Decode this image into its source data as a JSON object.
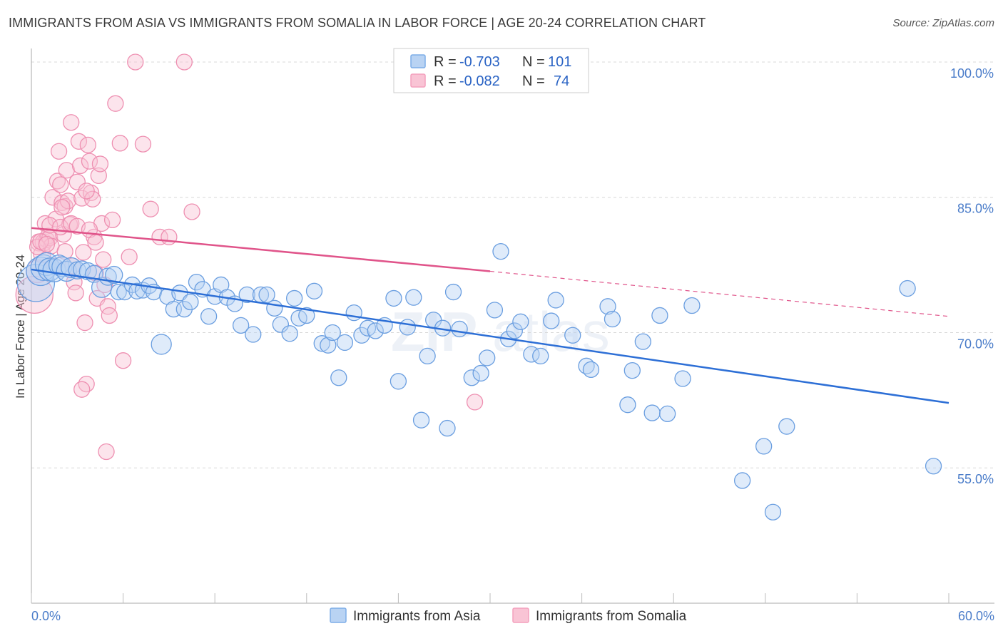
{
  "title": "IMMIGRANTS FROM ASIA VS IMMIGRANTS FROM SOMALIA IN LABOR FORCE | AGE 20-24 CORRELATION CHART",
  "source": "Source: ZipAtlas.com",
  "chart_data": {
    "type": "scatter",
    "title": "IMMIGRANTS FROM ASIA VS IMMIGRANTS FROM SOMALIA IN LABOR FORCE | AGE 20-24 CORRELATION CHART",
    "xlabel": "",
    "ylabel": "In Labor Force | Age 20-24",
    "xlim": [
      0,
      60
    ],
    "ylim": [
      40,
      101.5
    ],
    "x_tick_labels": [
      "0.0%",
      "60.0%"
    ],
    "y_ticks": [
      55,
      70,
      85,
      100
    ],
    "y_tick_labels": [
      "55.0%",
      "70.0%",
      "85.0%",
      "100.0%"
    ],
    "grid": true,
    "legend_position": "top-center",
    "watermark": "ZIPatlas",
    "legend": {
      "rows": [
        {
          "r_label": "R = ",
          "r_value": "-0.703",
          "n_label": "N = ",
          "n_value": "101"
        },
        {
          "r_label": "R = ",
          "r_value": "-0.082",
          "n_label": "N = ",
          "n_value": "74"
        }
      ]
    },
    "series": [
      {
        "name": "Immigrants from Asia",
        "color": "#7eaee8",
        "line_color": "#2d6fd6",
        "trend": {
          "x": [
            0,
            60
          ],
          "y": [
            77.0,
            62.2
          ]
        },
        "points": [
          [
            0.3,
            75.5
          ],
          [
            0.6,
            76.8
          ],
          [
            0.8,
            77.2
          ],
          [
            1.0,
            77.6
          ],
          [
            1.2,
            77.0
          ],
          [
            1.5,
            76.9
          ],
          [
            1.8,
            77.5
          ],
          [
            2.0,
            77.3
          ],
          [
            2.3,
            76.8
          ],
          [
            2.6,
            77.2
          ],
          [
            3.0,
            76.9
          ],
          [
            3.3,
            77.0
          ],
          [
            3.7,
            76.8
          ],
          [
            4.1,
            76.5
          ],
          [
            4.6,
            75.0
          ],
          [
            5.0,
            76.2
          ],
          [
            5.4,
            76.4
          ],
          [
            5.7,
            74.5
          ],
          [
            6.1,
            74.5
          ],
          [
            6.6,
            75.3
          ],
          [
            6.9,
            74.6
          ],
          [
            7.3,
            74.7
          ],
          [
            7.7,
            75.2
          ],
          [
            8.0,
            74.5
          ],
          [
            8.5,
            68.7
          ],
          [
            8.9,
            74.0
          ],
          [
            9.3,
            72.6
          ],
          [
            9.7,
            74.4
          ],
          [
            10.0,
            72.6
          ],
          [
            10.4,
            73.4
          ],
          [
            10.8,
            75.6
          ],
          [
            11.2,
            74.8
          ],
          [
            11.6,
            71.8
          ],
          [
            12.0,
            74.0
          ],
          [
            12.4,
            75.3
          ],
          [
            12.8,
            73.9
          ],
          [
            13.3,
            73.2
          ],
          [
            13.7,
            70.8
          ],
          [
            14.1,
            74.2
          ],
          [
            14.5,
            69.8
          ],
          [
            15.0,
            74.2
          ],
          [
            15.4,
            74.2
          ],
          [
            15.9,
            72.7
          ],
          [
            16.3,
            70.9
          ],
          [
            16.9,
            69.9
          ],
          [
            17.2,
            73.8
          ],
          [
            17.5,
            71.6
          ],
          [
            18.0,
            71.9
          ],
          [
            18.5,
            74.6
          ],
          [
            19.0,
            68.8
          ],
          [
            19.4,
            68.6
          ],
          [
            19.7,
            70.0
          ],
          [
            20.1,
            65.0
          ],
          [
            20.5,
            68.9
          ],
          [
            21.1,
            72.2
          ],
          [
            21.6,
            69.7
          ],
          [
            22.0,
            70.5
          ],
          [
            22.5,
            70.2
          ],
          [
            23.1,
            70.8
          ],
          [
            23.7,
            73.8
          ],
          [
            24.0,
            64.6
          ],
          [
            24.6,
            70.6
          ],
          [
            25.0,
            73.9
          ],
          [
            25.5,
            60.3
          ],
          [
            25.9,
            67.4
          ],
          [
            26.3,
            71.4
          ],
          [
            26.9,
            70.5
          ],
          [
            27.2,
            59.4
          ],
          [
            27.6,
            74.5
          ],
          [
            28.0,
            70.4
          ],
          [
            28.8,
            65.0
          ],
          [
            29.4,
            65.5
          ],
          [
            29.8,
            67.2
          ],
          [
            30.3,
            72.5
          ],
          [
            30.7,
            79.0
          ],
          [
            31.2,
            69.3
          ],
          [
            31.6,
            70.2
          ],
          [
            32.0,
            71.2
          ],
          [
            32.7,
            67.6
          ],
          [
            33.3,
            67.4
          ],
          [
            34.0,
            71.3
          ],
          [
            34.3,
            73.6
          ],
          [
            35.4,
            69.7
          ],
          [
            36.3,
            66.3
          ],
          [
            36.6,
            65.9
          ],
          [
            37.7,
            72.9
          ],
          [
            38.0,
            71.5
          ],
          [
            39.0,
            62.0
          ],
          [
            39.3,
            65.8
          ],
          [
            40.0,
            69.0
          ],
          [
            40.6,
            61.1
          ],
          [
            41.1,
            71.9
          ],
          [
            41.6,
            61.0
          ],
          [
            42.6,
            64.9
          ],
          [
            43.2,
            73.0
          ],
          [
            46.5,
            53.6
          ],
          [
            47.9,
            57.4
          ],
          [
            48.5,
            50.1
          ],
          [
            49.4,
            59.6
          ],
          [
            57.3,
            74.9
          ],
          [
            59.0,
            55.2
          ]
        ],
        "sizes": [
          26,
          20,
          18,
          16,
          16,
          16,
          14,
          14,
          14,
          14,
          12,
          12,
          12,
          12,
          14,
          12,
          12,
          11,
          11,
          11,
          11,
          11,
          11,
          11,
          14,
          11,
          11,
          11,
          11,
          11,
          11,
          11,
          11,
          11,
          11,
          11,
          11,
          11,
          11,
          11,
          11,
          11,
          11,
          11,
          11,
          11,
          11,
          11,
          11,
          11,
          11,
          11,
          11,
          11,
          11,
          11,
          11,
          11,
          11,
          11,
          11,
          11,
          11,
          11,
          11,
          11,
          11,
          11,
          11,
          11,
          11,
          11,
          11,
          11,
          11,
          11,
          11,
          11,
          11,
          11,
          11,
          11,
          11,
          11,
          11,
          11,
          11,
          11,
          11,
          11,
          11,
          11,
          11,
          11,
          11,
          11,
          11,
          11,
          11,
          11,
          11
        ]
      },
      {
        "name": "Immigrants from Somalia",
        "color": "#f4a0bd",
        "line_color": "#e0548a",
        "trend": {
          "x": [
            0,
            30
          ],
          "y": [
            81.6,
            76.8
          ]
        },
        "trend_dashed": {
          "x": [
            30,
            60
          ],
          "y": [
            76.8,
            71.8
          ]
        },
        "points": [
          [
            0.2,
            74.2
          ],
          [
            0.4,
            76.8
          ],
          [
            0.5,
            80.0
          ],
          [
            0.7,
            78.7
          ],
          [
            0.8,
            80.0
          ],
          [
            0.9,
            82.1
          ],
          [
            1.0,
            80.3
          ],
          [
            1.1,
            80.7
          ],
          [
            1.2,
            80.5
          ],
          [
            1.3,
            79.6
          ],
          [
            1.4,
            85.0
          ],
          [
            1.5,
            77.4
          ],
          [
            1.6,
            82.6
          ],
          [
            1.7,
            86.8
          ],
          [
            1.8,
            90.1
          ],
          [
            1.9,
            86.4
          ],
          [
            2.0,
            84.4
          ],
          [
            2.1,
            80.9
          ],
          [
            2.2,
            84.0
          ],
          [
            2.3,
            88.0
          ],
          [
            2.4,
            84.6
          ],
          [
            2.5,
            82.0
          ],
          [
            2.6,
            93.3
          ],
          [
            2.7,
            77.4
          ],
          [
            2.8,
            75.6
          ],
          [
            2.9,
            74.4
          ],
          [
            3.0,
            86.7
          ],
          [
            3.1,
            91.2
          ],
          [
            3.2,
            88.5
          ],
          [
            3.3,
            84.9
          ],
          [
            3.4,
            78.9
          ],
          [
            3.5,
            71.1
          ],
          [
            3.6,
            64.3
          ],
          [
            3.7,
            90.8
          ],
          [
            3.8,
            89.0
          ],
          [
            3.9,
            85.5
          ],
          [
            4.0,
            84.8
          ],
          [
            4.1,
            80.6
          ],
          [
            4.2,
            76.6
          ],
          [
            4.3,
            73.8
          ],
          [
            4.4,
            87.4
          ],
          [
            4.5,
            88.7
          ],
          [
            4.6,
            82.1
          ],
          [
            4.7,
            78.1
          ],
          [
            4.8,
            75.3
          ],
          [
            4.9,
            56.8
          ],
          [
            5.0,
            72.9
          ],
          [
            5.1,
            71.9
          ],
          [
            5.3,
            82.5
          ],
          [
            5.5,
            95.4
          ],
          [
            5.8,
            91.0
          ],
          [
            6.0,
            66.9
          ],
          [
            6.4,
            78.4
          ],
          [
            6.8,
            100.0
          ],
          [
            7.3,
            90.9
          ],
          [
            7.8,
            83.7
          ],
          [
            8.4,
            80.6
          ],
          [
            9.0,
            80.6
          ],
          [
            10.0,
            100.0
          ],
          [
            10.5,
            83.4
          ],
          [
            1.2,
            81.9
          ],
          [
            1.9,
            81.7
          ],
          [
            2.2,
            79.0
          ],
          [
            2.6,
            82.1
          ],
          [
            3.0,
            81.8
          ],
          [
            3.3,
            63.7
          ],
          [
            3.6,
            85.7
          ],
          [
            0.4,
            79.5
          ],
          [
            0.6,
            80.1
          ],
          [
            2.0,
            83.9
          ],
          [
            3.8,
            81.4
          ],
          [
            4.2,
            80.0
          ],
          [
            29.0,
            62.3
          ],
          [
            1.0,
            79.8
          ]
        ],
        "sizes": [
          26,
          16,
          12,
          12,
          12,
          11,
          11,
          11,
          11,
          11,
          11,
          11,
          11,
          11,
          11,
          11,
          11,
          11,
          11,
          11,
          11,
          11,
          11,
          11,
          11,
          11,
          11,
          11,
          11,
          11,
          11,
          11,
          11,
          11,
          11,
          11,
          11,
          11,
          11,
          11,
          11,
          11,
          11,
          11,
          11,
          11,
          11,
          11,
          11,
          11,
          11,
          11,
          11,
          11,
          11,
          11,
          11,
          11,
          11,
          11,
          11,
          11,
          11,
          11,
          11,
          11,
          11,
          11,
          11,
          11,
          11,
          11,
          11,
          11
        ]
      }
    ]
  }
}
